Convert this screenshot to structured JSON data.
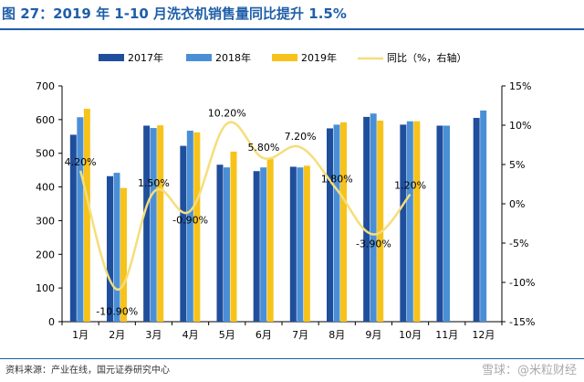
{
  "header": {
    "title": "图 27：2019 年 1-10 月洗衣机销售量同比提升 1.5%"
  },
  "footer": {
    "source": "资料来源：产业在线，国元证券研究中心",
    "watermark": "雪球：@米粒财经"
  },
  "colors": {
    "title": "#1f5fa8",
    "s2017": "#1f4e9c",
    "s2018": "#4a8fd6",
    "s2019": "#f7c21a",
    "yoy": "#f5de7a"
  },
  "chart_data": {
    "type": "bar",
    "categories": [
      "1月",
      "2月",
      "3月",
      "4月",
      "5月",
      "6月",
      "7月",
      "8月",
      "9月",
      "10月",
      "11月",
      "12月"
    ],
    "series": [
      {
        "name": "2017年",
        "values": [
          555,
          432,
          582,
          522,
          466,
          447,
          460,
          574,
          608,
          585,
          582,
          605
        ]
      },
      {
        "name": "2018年",
        "values": [
          607,
          442,
          575,
          567,
          458,
          458,
          458,
          585,
          618,
          595,
          582,
          627
        ]
      },
      {
        "name": "2019年",
        "values": [
          632,
          397,
          583,
          562,
          505,
          483,
          463,
          592,
          597,
          595,
          null,
          null
        ]
      }
    ],
    "line_series": {
      "name": "同比（%，右轴）",
      "values": [
        4.2,
        -10.9,
        1.5,
        -0.9,
        10.2,
        5.8,
        7.2,
        1.8,
        -3.9,
        1.2,
        null,
        null
      ],
      "labels": [
        "4.20%",
        "-10.90%",
        "1.50%",
        "-0.90%",
        "10.20%",
        "5.80%",
        "7.20%",
        "1.80%",
        "-3.90%",
        "1.20%",
        "",
        ""
      ]
    },
    "y_left": {
      "min": 0,
      "max": 700,
      "step": 100,
      "ticks": [
        "0",
        "100",
        "200",
        "300",
        "400",
        "500",
        "600",
        "700"
      ]
    },
    "y_right": {
      "min": -15,
      "max": 15,
      "step": 5,
      "ticks": [
        "-15%",
        "-10%",
        "-5%",
        "0%",
        "5%",
        "10%",
        "15%"
      ]
    },
    "legend_position": "top"
  }
}
